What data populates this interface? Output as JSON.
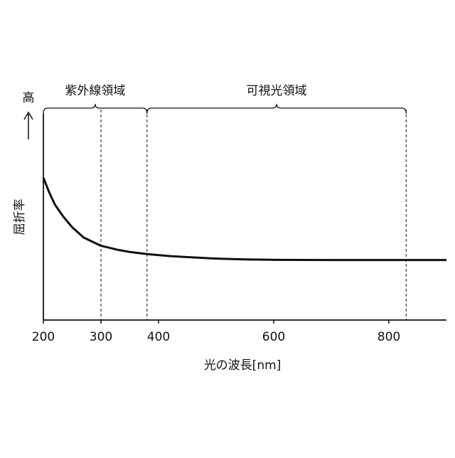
{
  "chart_data": {
    "type": "line",
    "x_label": "光の波長[nm]",
    "y_label": "屈折率",
    "y_direction": "高",
    "x": [
      200,
      210,
      220,
      235,
      250,
      270,
      300,
      330,
      350,
      380,
      420,
      450,
      500,
      550,
      600,
      700,
      800,
      900
    ],
    "series": [
      {
        "color": "#111111",
        "values": [
          0.69,
          0.62,
          0.56,
          0.5,
          0.45,
          0.4,
          0.36,
          0.34,
          0.33,
          0.32,
          0.31,
          0.305,
          0.298,
          0.294,
          0.292,
          0.291,
          0.291,
          0.291
        ]
      }
    ],
    "xlim": [
      200,
      900
    ],
    "xticks": [
      200,
      300,
      400,
      600,
      800
    ],
    "ylim": [
      0,
      1
    ],
    "dashed_lines": [
      300,
      380,
      830
    ],
    "regions": [
      {
        "label": "紫外線領域",
        "start": 200,
        "end": 380
      },
      {
        "label": "可視光領域",
        "start": 380,
        "end": 830
      }
    ]
  }
}
